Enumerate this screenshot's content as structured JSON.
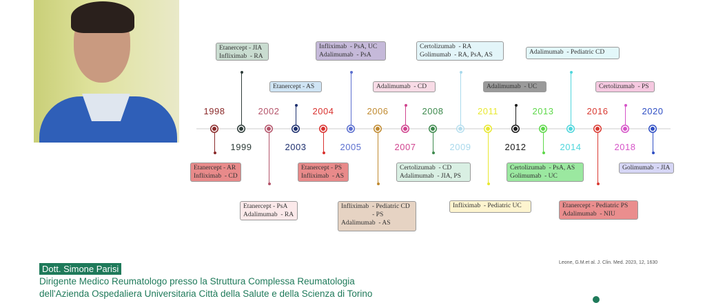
{
  "events": [
    {
      "year": "1998",
      "color": "#8b2b2b",
      "text": "Etanercept - AR\nInfliximab  - CD",
      "box_color": "#e88a8a"
    },
    {
      "year": "1999",
      "color": "#2f3d3a",
      "text": "Etanercept - JIA\nInfliximab  - RA",
      "box_color": "#c9dcd0"
    },
    {
      "year": "2002",
      "color": "#b4546a",
      "text": "Etanercept - PsA\nAdalimumab  - RA",
      "box_color": "#fbe9ea"
    },
    {
      "year": "2003",
      "color": "#1d2f6e",
      "text": "Etanercept - AS",
      "box_color": "#cfe4f4"
    },
    {
      "year": "2004",
      "color": "#d9322f",
      "text": "Etanercept - PS\nInfliximab  - AS",
      "box_color": "#e88a8a"
    },
    {
      "year": "2005",
      "color": "#5b6fcf",
      "text": "Infliximab  - PsA, UC\nAdalimumab  - PsA",
      "box_color": "#c5b9d9"
    },
    {
      "year": "2006",
      "color": "#c08a30",
      "text": "Infliximab  - Pediatric CD\n                   - PS\nAdalimumab  - AS",
      "box_color": "#e6d3c3"
    },
    {
      "year": "2007",
      "color": "#d0448f",
      "text": "Adalimumab  - CD",
      "box_color": "#f8dbe6"
    },
    {
      "year": "2008",
      "color": "#3e8a4e",
      "text": "Certolizumab  - CD\nAdalimumab  - JIA, PS",
      "box_color": "#d9efe3"
    },
    {
      "year": "2009",
      "color": "#a9d9ec",
      "text": "Certolizumab  - RA\nGolimumab  - RA, PsA, AS",
      "box_color": "#e3f5f9"
    },
    {
      "year": "2011",
      "color": "#e8e830",
      "text": "Infliximab  - Pediatric UC",
      "box_color": "#fdf4cf"
    },
    {
      "year": "2012",
      "color": "#1a1a1a",
      "text": "Adalimumab  - UC",
      "box_color": "#9a9a9a"
    },
    {
      "year": "2013",
      "color": "#5ed84a",
      "text": "Certolizumab  - PsA, AS\nGolimumab  - UC",
      "box_color": "#9be8a0"
    },
    {
      "year": "2014",
      "color": "#4fd6dc",
      "text": "Adalimumab  - Pediatric CD",
      "box_color": "#e3f8fa"
    },
    {
      "year": "2016",
      "color": "#d93a32",
      "text": "Etanercept - Pediatric PS\nAdalimumab  - NIU",
      "box_color": "#ea8e8e"
    },
    {
      "year": "2018",
      "color": "#d654c8",
      "text": "Certolizumab  - PS",
      "box_color": "#f5c8e0"
    },
    {
      "year": "2020",
      "color": "#2f4fc4",
      "text": "Golimumab  - JIA",
      "box_color": "#d6d6f5"
    }
  ],
  "speaker": {
    "name": "Dott. Simone Parisi",
    "role_line1": "Dirigente Medico Reumatologo presso la Struttura Complessa Reumatologia",
    "role_line2": "dell'Azienda Ospedaliera Universitaria Città della Salute e della Scienza di Torino"
  },
  "citation": "Leone, G.M.et al. J. Clin. Med. 2023, 12, 1630"
}
